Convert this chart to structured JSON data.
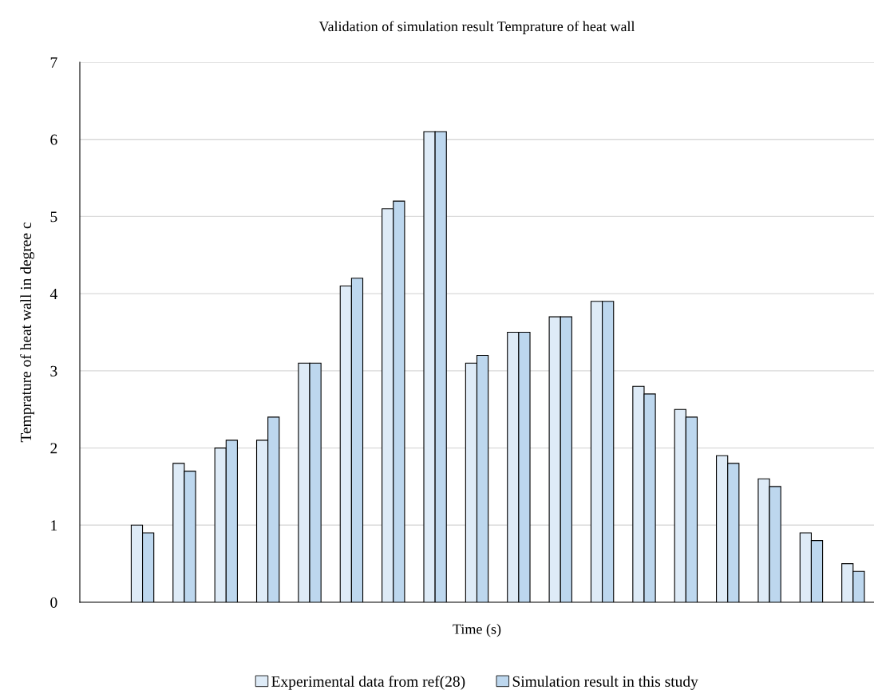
{
  "chart_data": {
    "type": "bar",
    "title": "Validation of simulation result Temprature of heat wall",
    "xlabel": "Time (s)",
    "ylabel": "Temprature of heat wall in degree c",
    "categories": [
      null,
      null,
      null,
      null,
      null,
      null,
      null,
      null,
      null,
      null,
      null,
      null,
      null,
      null,
      null,
      null,
      null,
      null,
      null
    ],
    "series": [
      {
        "name": "Experimental data from ref(28)",
        "color": "#deebf7",
        "values": [
          null,
          1.0,
          1.8,
          2.0,
          2.1,
          3.1,
          4.1,
          5.1,
          6.1,
          3.1,
          3.5,
          3.7,
          3.9,
          2.8,
          2.5,
          1.9,
          1.6,
          0.9,
          0.5
        ]
      },
      {
        "name": "Simulation result in this study",
        "color": "#bdd7ee",
        "values": [
          null,
          0.9,
          1.7,
          2.1,
          2.4,
          3.1,
          4.2,
          5.2,
          6.1,
          3.2,
          3.5,
          3.7,
          3.9,
          2.7,
          2.4,
          1.8,
          1.5,
          0.8,
          0.4
        ]
      }
    ],
    "ylim": [
      0,
      7
    ],
    "yticks": [
      0,
      1,
      2,
      3,
      4,
      5,
      6,
      7
    ],
    "grid": "y",
    "legend": "bottom"
  }
}
